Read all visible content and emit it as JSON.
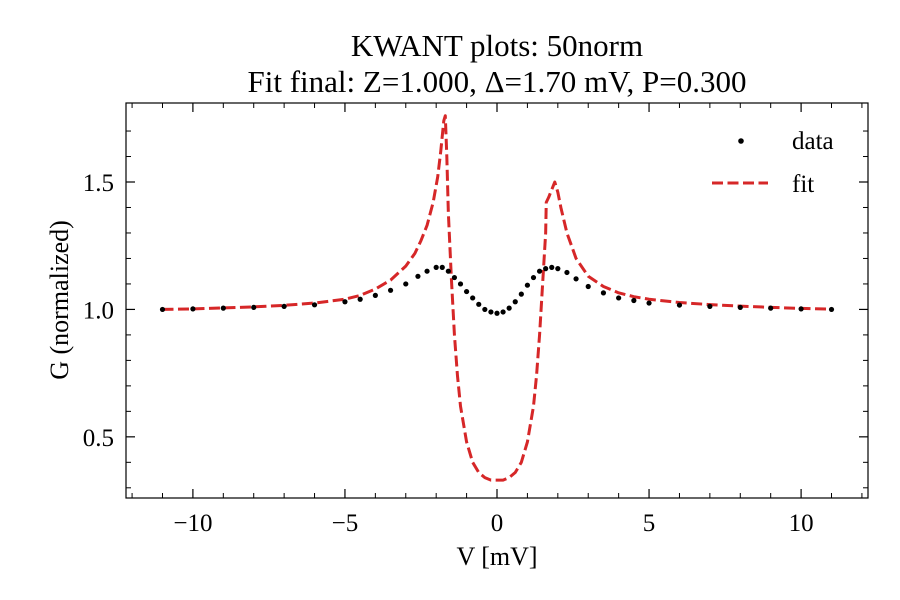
{
  "chart_data": {
    "type": "line",
    "title": "KWANT plots: 50norm",
    "subtitle": "Fit final: Z=1.000, Δ=1.70 mV, P=0.300",
    "xlabel": "V [mV]",
    "ylabel": "G (normalized)",
    "xlim": [
      -12.2,
      12.2
    ],
    "ylim": [
      0.26,
      1.81
    ],
    "xticks": [
      -10,
      -5,
      0,
      5,
      10
    ],
    "xtick_labels": [
      "−10",
      "−5",
      "0",
      "5",
      "10"
    ],
    "yticks": [
      0.5,
      1.0,
      1.5
    ],
    "ytick_labels": [
      "0.5",
      "1.0",
      "1.5"
    ],
    "grid": false,
    "legend_position": "top-right",
    "series": [
      {
        "name": "data",
        "style": "dots",
        "color": "#000000",
        "x": [
          -11.0,
          -10.0,
          -9.0,
          -8.0,
          -7.0,
          -6.0,
          -5.0,
          -4.5,
          -4.0,
          -3.5,
          -3.0,
          -2.6,
          -2.3,
          -2.0,
          -1.8,
          -1.6,
          -1.4,
          -1.2,
          -1.0,
          -0.8,
          -0.6,
          -0.4,
          -0.2,
          0.0,
          0.2,
          0.4,
          0.6,
          0.8,
          1.0,
          1.2,
          1.4,
          1.6,
          1.8,
          2.0,
          2.3,
          2.6,
          3.0,
          3.5,
          4.0,
          4.5,
          5.0,
          6.0,
          7.0,
          8.0,
          9.0,
          10.0,
          11.0
        ],
        "y": [
          1.0,
          1.002,
          1.005,
          1.008,
          1.012,
          1.018,
          1.03,
          1.04,
          1.055,
          1.075,
          1.1,
          1.13,
          1.15,
          1.165,
          1.165,
          1.15,
          1.125,
          1.1,
          1.07,
          1.045,
          1.02,
          1.0,
          0.99,
          0.985,
          0.99,
          1.005,
          1.03,
          1.06,
          1.095,
          1.125,
          1.15,
          1.16,
          1.165,
          1.16,
          1.145,
          1.12,
          1.09,
          1.065,
          1.045,
          1.035,
          1.025,
          1.017,
          1.012,
          1.008,
          1.005,
          1.002,
          1.0
        ]
      },
      {
        "name": "fit",
        "style": "dashed",
        "color": "#d62728",
        "x": [
          -11.0,
          -10.0,
          -9.0,
          -8.0,
          -7.0,
          -6.0,
          -5.0,
          -4.5,
          -4.0,
          -3.5,
          -3.0,
          -2.7,
          -2.5,
          -2.3,
          -2.1,
          -1.95,
          -1.85,
          -1.75,
          -1.7,
          -1.65,
          -1.6,
          -1.5,
          -1.4,
          -1.3,
          -1.2,
          -1.0,
          -0.8,
          -0.6,
          -0.4,
          -0.2,
          0.0,
          0.2,
          0.4,
          0.6,
          0.8,
          1.0,
          1.2,
          1.3,
          1.4,
          1.5,
          1.6,
          1.62,
          1.7,
          1.8,
          1.9,
          2.0,
          2.1,
          2.3,
          2.6,
          3.0,
          3.5,
          4.0,
          4.5,
          5.0,
          6.0,
          7.0,
          8.0,
          9.0,
          10.0,
          11.0
        ],
        "y": [
          1.0,
          1.002,
          1.006,
          1.01,
          1.016,
          1.025,
          1.04,
          1.055,
          1.08,
          1.115,
          1.17,
          1.22,
          1.27,
          1.33,
          1.42,
          1.52,
          1.62,
          1.74,
          1.76,
          1.6,
          1.38,
          1.12,
          0.9,
          0.74,
          0.62,
          0.48,
          0.4,
          0.36,
          0.34,
          0.33,
          0.33,
          0.33,
          0.34,
          0.36,
          0.4,
          0.48,
          0.62,
          0.74,
          0.9,
          1.1,
          1.3,
          1.42,
          1.44,
          1.47,
          1.5,
          1.46,
          1.4,
          1.3,
          1.2,
          1.13,
          1.09,
          1.065,
          1.05,
          1.04,
          1.027,
          1.019,
          1.013,
          1.008,
          1.004,
          1.001
        ]
      }
    ]
  }
}
